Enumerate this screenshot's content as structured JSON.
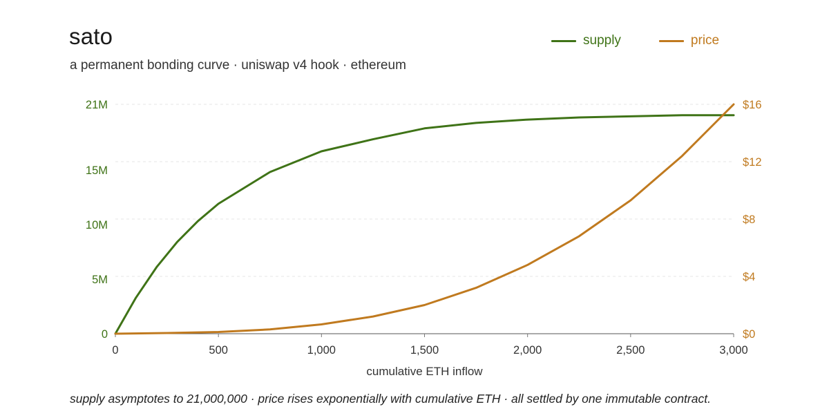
{
  "header": {
    "title": "sato",
    "subtitle": "a permanent bonding curve · uniswap v4 hook · ethereum"
  },
  "caption": "supply asymptotes to 21,000,000 · price rises exponentially with cumulative ETH · all settled by one immutable contract.",
  "colors": {
    "supply": "#3f7317",
    "price": "#c07a1f",
    "grid": "#e6e6e6",
    "xaxis_text": "#333333"
  },
  "chart_data": {
    "type": "line",
    "xlabel": "cumulative ETH inflow",
    "xlim": [
      0,
      3000
    ],
    "x_ticks": [
      0,
      500,
      1000,
      1500,
      2000,
      2500,
      3000
    ],
    "x_tick_labels": [
      "0",
      "500",
      "1,000",
      "1,500",
      "2,000",
      "2,500",
      "3,000"
    ],
    "y_left": {
      "lim": [
        0,
        21000000
      ],
      "ticks": [
        0,
        5000000,
        10000000,
        15000000,
        21000000
      ],
      "tick_labels": [
        "0",
        "5M",
        "10M",
        "15M",
        "21M"
      ]
    },
    "y_right": {
      "lim": [
        0,
        16
      ],
      "ticks": [
        0,
        4,
        8,
        12,
        16
      ],
      "tick_labels": [
        "$0",
        "$4",
        "$8",
        "$12",
        "$16"
      ]
    },
    "grid": true,
    "legend_position": "top-right",
    "series": [
      {
        "name": "supply",
        "axis": "left",
        "x": [
          0,
          100,
          200,
          300,
          400,
          500,
          750,
          1000,
          1250,
          1500,
          1750,
          2000,
          2250,
          2500,
          2750,
          3000
        ],
        "values": [
          0,
          3300000,
          6100000,
          8400000,
          10300000,
          11900000,
          14800000,
          16700000,
          17800000,
          18800000,
          19300000,
          19600000,
          19800000,
          19900000,
          20000000,
          20000000
        ]
      },
      {
        "name": "price",
        "axis": "right",
        "x": [
          0,
          250,
          500,
          750,
          1000,
          1250,
          1500,
          1750,
          2000,
          2250,
          2500,
          2750,
          3000
        ],
        "values": [
          0,
          0.05,
          0.12,
          0.3,
          0.65,
          1.2,
          2.0,
          3.2,
          4.8,
          6.8,
          9.3,
          12.4,
          16.0
        ]
      }
    ]
  }
}
